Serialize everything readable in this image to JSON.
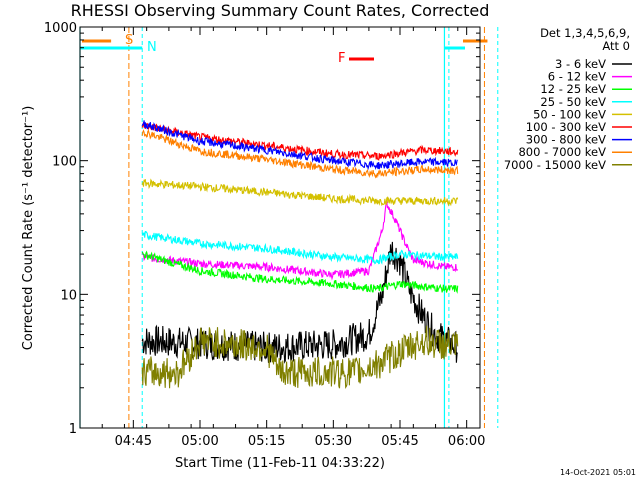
{
  "chart_data": {
    "type": "line",
    "title": "RHESSI Observing Summary Count Rates, Corrected",
    "xlabel": "Start Time (11-Feb-11 04:33:22)",
    "ylabel": "Corrected Count Rate (s⁻¹ detector⁻¹)",
    "y_scale": "log",
    "ylim": [
      1,
      1000
    ],
    "xlim_minutes_after_0433": [
      0,
      90
    ],
    "y_ticks": [
      {
        "value": 1,
        "label": "1"
      },
      {
        "value": 10,
        "label": "10"
      },
      {
        "value": 100,
        "label": "100"
      },
      {
        "value": 1000,
        "label": "1000"
      }
    ],
    "x_ticks": [
      {
        "time": "04:45",
        "label": "04:45"
      },
      {
        "time": "05:00",
        "label": "05:00"
      },
      {
        "time": "05:15",
        "label": "05:15"
      },
      {
        "time": "05:30",
        "label": "05:30"
      },
      {
        "time": "05:45",
        "label": "05:45"
      },
      {
        "time": "06:00",
        "label": "06:00"
      }
    ],
    "detectors_label": "Det 1,3,4,5,6,9,",
    "attenuator_label": "Att 0",
    "timestamp": "14-Oct-2021 05:01",
    "markers": {
      "saa_label": "S",
      "night_label": "N",
      "flare_label": "F",
      "night_lines": [
        "04:47",
        "05:56",
        "06:07"
      ],
      "saa_lines": [
        "04:44",
        "06:04"
      ],
      "day_boundary_lines": [
        "04:33",
        "05:55"
      ]
    },
    "series": [
      {
        "name": "3 - 6 keV",
        "color": "#000000",
        "points": [
          [
            "04:47",
            4.5
          ],
          [
            "05:00",
            4.3
          ],
          [
            "05:15",
            4.0
          ],
          [
            "05:30",
            4.2
          ],
          [
            "05:38",
            5
          ],
          [
            "05:41",
            10
          ],
          [
            "05:43",
            22
          ],
          [
            "05:45",
            18
          ],
          [
            "05:47",
            11
          ],
          [
            "05:50",
            7
          ],
          [
            "05:53",
            5
          ],
          [
            "05:58",
            4
          ]
        ]
      },
      {
        "name": "6 - 12 keV",
        "color": "#ff00ff",
        "points": [
          [
            "04:47",
            19
          ],
          [
            "05:00",
            17
          ],
          [
            "05:15",
            16
          ],
          [
            "05:30",
            14
          ],
          [
            "05:38",
            15
          ],
          [
            "05:41",
            30
          ],
          [
            "05:42",
            48
          ],
          [
            "05:44",
            36
          ],
          [
            "05:46",
            25
          ],
          [
            "05:48",
            18
          ],
          [
            "05:55",
            16
          ],
          [
            "05:58",
            16
          ]
        ]
      },
      {
        "name": "12 - 25 keV",
        "color": "#00ff00",
        "points": [
          [
            "04:47",
            20
          ],
          [
            "05:00",
            15
          ],
          [
            "05:15",
            13
          ],
          [
            "05:30",
            12
          ],
          [
            "05:40",
            11
          ],
          [
            "05:45",
            12
          ],
          [
            "05:55",
            11
          ],
          [
            "05:58",
            11
          ]
        ]
      },
      {
        "name": "25 - 50 keV",
        "color": "#00ffff",
        "points": [
          [
            "04:47",
            28
          ],
          [
            "05:00",
            24
          ],
          [
            "05:15",
            22
          ],
          [
            "05:30",
            19
          ],
          [
            "05:40",
            18
          ],
          [
            "05:45",
            20
          ],
          [
            "05:55",
            19
          ],
          [
            "05:58",
            19
          ]
        ]
      },
      {
        "name": "50 - 100 keV",
        "color": "#d4c000",
        "points": [
          [
            "04:47",
            68
          ],
          [
            "05:00",
            64
          ],
          [
            "05:15",
            58
          ],
          [
            "05:30",
            52
          ],
          [
            "05:40",
            50
          ],
          [
            "05:45",
            50
          ],
          [
            "05:55",
            50
          ],
          [
            "05:58",
            50
          ]
        ]
      },
      {
        "name": "100 - 300 keV",
        "color": "#ff0000",
        "points": [
          [
            "04:47",
            185
          ],
          [
            "05:00",
            150
          ],
          [
            "05:15",
            130
          ],
          [
            "05:30",
            112
          ],
          [
            "05:40",
            108
          ],
          [
            "05:50",
            120
          ],
          [
            "05:55",
            118
          ],
          [
            "05:58",
            115
          ]
        ]
      },
      {
        "name": "300 - 800 keV",
        "color": "#0000ff",
        "points": [
          [
            "04:47",
            190
          ],
          [
            "05:00",
            140
          ],
          [
            "05:15",
            120
          ],
          [
            "05:30",
            100
          ],
          [
            "05:40",
            92
          ],
          [
            "05:50",
            98
          ],
          [
            "05:55",
            97
          ],
          [
            "05:58",
            95
          ]
        ]
      },
      {
        "name": "800 - 7000 keV",
        "color": "#ff8000",
        "points": [
          [
            "04:47",
            165
          ],
          [
            "05:00",
            118
          ],
          [
            "05:15",
            102
          ],
          [
            "05:30",
            86
          ],
          [
            "05:40",
            80
          ],
          [
            "05:50",
            86
          ],
          [
            "05:55",
            85
          ],
          [
            "05:58",
            85
          ]
        ]
      },
      {
        "name": "7000 - 15000 keV",
        "color": "#808000",
        "points": [
          [
            "04:47",
            2.6
          ],
          [
            "04:55",
            2.6
          ],
          [
            "05:00",
            4.5
          ],
          [
            "05:15",
            4.0
          ],
          [
            "05:18",
            2.6
          ],
          [
            "05:35",
            2.6
          ],
          [
            "05:40",
            3.0
          ],
          [
            "05:50",
            4.5
          ],
          [
            "05:58",
            4.0
          ]
        ]
      }
    ]
  }
}
